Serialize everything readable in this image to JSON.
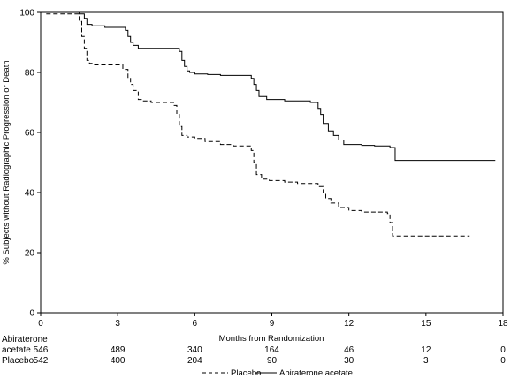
{
  "chart_data": {
    "type": "line",
    "chart_style": "kaplan-meier step curves",
    "xlabel": "Months from Randomization",
    "ylabel": "% Subjects without Radiographic Progression or Death",
    "xlim": [
      0,
      18
    ],
    "ylim": [
      0,
      100
    ],
    "x_ticks": [
      "0",
      "3",
      "6",
      "9",
      "12",
      "15",
      "18"
    ],
    "y_ticks": [
      "0",
      "20",
      "40",
      "60",
      "80",
      "100"
    ],
    "grid": false,
    "legend_position": "bottom-center",
    "series": [
      {
        "name": "Placebo",
        "line_style": "dashed",
        "color": "#000000",
        "x": [
          0,
          0.2,
          1.5,
          1.6,
          1.7,
          1.8,
          1.9,
          2.0,
          2.2,
          3.2,
          3.4,
          3.5,
          3.6,
          3.8,
          4.0,
          4.3,
          5.2,
          5.3,
          5.4,
          5.5,
          5.7,
          6.0,
          6.4,
          7.0,
          7.5,
          8.2,
          8.3,
          8.4,
          8.6,
          8.9,
          9.5,
          10.0,
          10.8,
          11.0,
          11.1,
          11.3,
          11.6,
          12.0,
          12.5,
          13.5,
          13.6,
          13.7,
          16.7
        ],
        "y": [
          100,
          99.5,
          97,
          92,
          88,
          84,
          83,
          82.5,
          82.5,
          81,
          78,
          76,
          74,
          71,
          70.5,
          70,
          69,
          66,
          62,
          59,
          58.5,
          58,
          57,
          56,
          55.5,
          54,
          50,
          46,
          44.5,
          44,
          43.5,
          43,
          42,
          40,
          38,
          36.5,
          35,
          34,
          33.5,
          33,
          30,
          25.5,
          25.5
        ]
      },
      {
        "name": "Abiraterone acetate",
        "line_style": "solid",
        "color": "#000000",
        "x": [
          0,
          0.5,
          1.5,
          1.7,
          1.8,
          2.0,
          2.5,
          3.3,
          3.4,
          3.5,
          3.6,
          3.8,
          4.0,
          5.4,
          5.5,
          5.6,
          5.7,
          5.8,
          6.0,
          6.5,
          7.0,
          7.5,
          8.0,
          8.2,
          8.3,
          8.4,
          8.5,
          8.8,
          9.5,
          10.5,
          10.8,
          10.9,
          11.0,
          11.2,
          11.4,
          11.6,
          11.8,
          12.5,
          13.0,
          13.5,
          13.6,
          13.8,
          17.7
        ],
        "y": [
          100,
          100,
          99.5,
          98,
          96,
          95.5,
          95,
          94,
          92,
          90,
          89,
          88,
          88,
          87,
          84,
          82,
          80.5,
          80,
          79.5,
          79.3,
          79,
          79,
          79,
          78,
          76,
          74,
          72,
          71,
          70.5,
          70,
          68,
          66,
          63,
          60.5,
          59,
          57.5,
          56,
          55.7,
          55.5,
          55.5,
          55,
          50.7,
          50.7
        ]
      }
    ]
  },
  "risk_table": {
    "rows": [
      {
        "label_line1": "Abiraterone",
        "label_line2": "acetate",
        "counts": [
          "546",
          "489",
          "340",
          "164",
          "46",
          "12",
          "0"
        ]
      },
      {
        "label_line1": "Placebo",
        "label_line2": "",
        "counts": [
          "542",
          "400",
          "204",
          "90",
          "30",
          "3",
          "0"
        ]
      }
    ]
  },
  "legend": {
    "items": [
      {
        "label": "Placebo",
        "line_style": "dashed"
      },
      {
        "label": "Abiraterone acetate",
        "line_style": "solid"
      }
    ]
  }
}
